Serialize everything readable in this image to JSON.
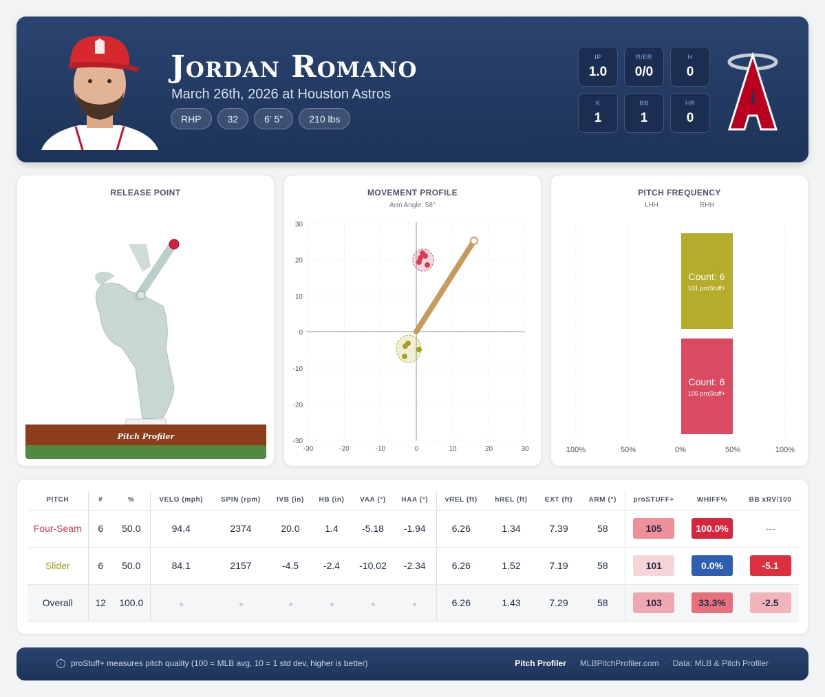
{
  "player": {
    "name": "Jordan Romano",
    "subtitle": "March 26th, 2026 at Houston Astros",
    "chips": [
      "RHP",
      "32",
      "6' 5\"",
      "210 lbs"
    ]
  },
  "stats": [
    {
      "label": "IP",
      "value": "1.0"
    },
    {
      "label": "R/ER",
      "value": "0/0"
    },
    {
      "label": "H",
      "value": "0"
    },
    {
      "label": "K",
      "value": "1"
    },
    {
      "label": "BB",
      "value": "1"
    },
    {
      "label": "HR",
      "value": "0"
    }
  ],
  "logo_icon": "angels-halo-a-logo",
  "release_point": {
    "title": "RELEASE POINT",
    "mound_text": "Pitch Profiler"
  },
  "movement": {
    "title": "MOVEMENT PROFILE",
    "subtitle": "Arm Angle: 58°",
    "x_ticks": [
      "-30",
      "-20",
      "-10",
      "0",
      "10",
      "20",
      "30"
    ],
    "y_ticks": [
      "30",
      "20",
      "10",
      "0",
      "-10",
      "-20",
      "-30"
    ]
  },
  "frequency": {
    "title": "PITCH FREQUENCY",
    "col_labels": [
      "LHH",
      "RHH"
    ],
    "axis_labels": [
      "100%",
      "50%",
      "0%",
      "50%",
      "100%"
    ],
    "bars": [
      {
        "count": "Count: 6",
        "stuff": "101 proStuff+",
        "color": "#b5ac2c"
      },
      {
        "count": "Count: 6",
        "stuff": "105 proStuff+",
        "color": "#dc4a61"
      }
    ]
  },
  "table": {
    "headers": [
      "PITCH",
      "#",
      "%",
      "VELO (mph)",
      "SPIN (rpm)",
      "IVB (in)",
      "HB (in)",
      "VAA (°)",
      "HAA (°)",
      "vREL (ft)",
      "hREL (ft)",
      "EXT (ft)",
      "ARM (°)",
      "proSTUFF+",
      "WHIFF%",
      "BB xRV/100"
    ],
    "rows": [
      {
        "pitch": "Four-Seam",
        "n": "6",
        "pct": "50.0",
        "velo": "94.4",
        "spin": "2374",
        "ivb": "20.0",
        "hb": "1.4",
        "vaa": "-5.18",
        "haa": "-1.94",
        "vrel": "6.26",
        "hrel": "1.34",
        "ext": "7.39",
        "arm": "58",
        "stuff": "105",
        "whiff": "100.0%",
        "xrv": "---"
      },
      {
        "pitch": "Slider",
        "n": "6",
        "pct": "50.0",
        "velo": "84.1",
        "spin": "2157",
        "ivb": "-4.5",
        "hb": "-2.4",
        "vaa": "-10.02",
        "haa": "-2.34",
        "vrel": "6.26",
        "hrel": "1.52",
        "ext": "7.19",
        "arm": "58",
        "stuff": "101",
        "whiff": "0.0%",
        "xrv": "-5.1"
      },
      {
        "pitch": "Overall",
        "n": "12",
        "pct": "100.0",
        "vrel": "6.26",
        "hrel": "1.43",
        "ext": "7.29",
        "arm": "58",
        "stuff": "103",
        "whiff": "33.3%",
        "xrv": "-2.5"
      }
    ]
  },
  "footer": {
    "note": "proStuff+ measures pitch quality (100 = MLB avg, 10 = 1 std dev, higher is better)",
    "brand": "Pitch Profiler",
    "site": "MLBPitchProfiler.com",
    "source": "Data: MLB & Pitch Profiler"
  }
}
